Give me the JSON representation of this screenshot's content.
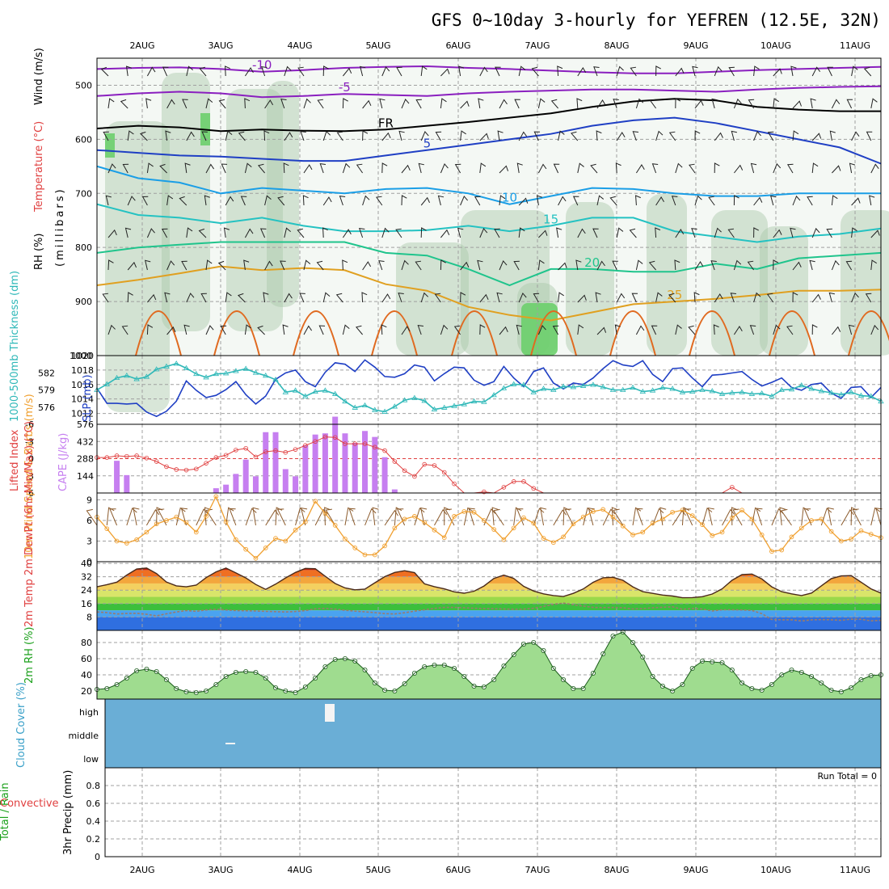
{
  "title": "GFS 0~10day 3-hourly for YEFREN (12.5E, 32N)",
  "dates": [
    "2AUG",
    "3AUG",
    "4AUG",
    "5AUG",
    "6AUG",
    "7AUG",
    "8AUG",
    "9AUG",
    "10AUG",
    "11AUG"
  ],
  "colors": {
    "rh_fill": "#dceedd",
    "rh_mid": "#a8c8a8",
    "rh_dark": "#b4b4b4",
    "rh_green": "#6ccf6c",
    "slp": "#1f3fc4",
    "thickness": "#2fb8b8",
    "cape": "#c67ff0",
    "lifted": "#e04040",
    "wind_speed": "#f0a030",
    "barb": "#8b5a2b",
    "cloud_bg": "#6aaed6",
    "dewpoint": "#9b7b6b"
  },
  "chart_data": [
    {
      "id": "upper",
      "type": "contour",
      "ylabel_parts": [
        "RH (%)",
        "Temperature (°C)",
        "Wind (m/s)"
      ],
      "yaxis_title": "(millibars)",
      "ylim": [
        1000,
        450
      ],
      "yticks": [
        500,
        600,
        700,
        800,
        900,
        1000
      ],
      "isotherms": [
        {
          "label": "-10",
          "color": "#8a1fbf",
          "values": [
            470,
            468,
            467,
            470,
            475,
            472,
            468,
            466,
            465,
            468,
            470,
            473,
            476,
            478,
            478,
            475,
            472,
            470,
            468,
            466
          ]
        },
        {
          "label": "-5",
          "color": "#8a1fbf",
          "values": [
            520,
            515,
            512,
            515,
            522,
            520,
            516,
            518,
            520,
            515,
            512,
            510,
            508,
            508,
            510,
            512,
            508,
            505,
            503,
            502
          ]
        },
        {
          "label": "FR",
          "color": "#000000",
          "values": [
            580,
            575,
            578,
            585,
            582,
            584,
            585,
            582,
            575,
            568,
            560,
            552,
            540,
            530,
            525,
            528,
            540,
            545,
            548,
            548
          ]
        },
        {
          "label": "5",
          "color": "#1f3fc4",
          "values": [
            620,
            625,
            630,
            632,
            636,
            640,
            640,
            630,
            620,
            610,
            600,
            590,
            575,
            565,
            560,
            570,
            585,
            600,
            615,
            645
          ]
        },
        {
          "label": "10",
          "color": "#1a9ee6",
          "values": [
            650,
            672,
            680,
            700,
            690,
            695,
            700,
            692,
            690,
            700,
            720,
            705,
            690,
            692,
            700,
            705,
            705,
            700,
            700,
            700
          ]
        },
        {
          "label": "15",
          "color": "#24c2c2",
          "values": [
            720,
            740,
            745,
            755,
            745,
            760,
            770,
            770,
            768,
            760,
            770,
            760,
            745,
            745,
            770,
            780,
            790,
            780,
            775,
            765
          ]
        },
        {
          "label": "20",
          "color": "#1fc48c",
          "values": [
            810,
            800,
            795,
            790,
            790,
            790,
            790,
            810,
            815,
            840,
            870,
            840,
            840,
            845,
            845,
            830,
            840,
            820,
            815,
            810
          ]
        },
        {
          "label": "25",
          "color": "#e0a020",
          "values": [
            870,
            860,
            848,
            835,
            842,
            838,
            842,
            868,
            880,
            910,
            925,
            935,
            920,
            905,
            900,
            895,
            888,
            880,
            880,
            878
          ]
        }
      ]
    },
    {
      "id": "slp-thickness",
      "type": "line",
      "ylabel_left": "1000-500mb Thickness (dm)",
      "ylabel_right": "SLP (mb)",
      "left_ylim": [
        573,
        585
      ],
      "left_ticks": [
        576,
        579,
        582
      ],
      "right_ylim": [
        1010.5,
        1020
      ],
      "right_ticks": [
        1012,
        1014,
        1016,
        1018,
        1020
      ],
      "series": [
        {
          "name": "SLP",
          "axis": "right",
          "values": [
            1015.5,
            1013.4,
            1013.4,
            1013.3,
            1013.4,
            1012.2,
            1011.6,
            1012.3,
            1013.7,
            1016.5,
            1015.2,
            1014.2,
            1014.5,
            1015.3,
            1016.4,
            1014.6,
            1013.3,
            1014.4,
            1016.7,
            1017.6,
            1018.0,
            1016.4,
            1015.7,
            1017.7,
            1019.0,
            1018.8,
            1017.8,
            1019.4,
            1018.4,
            1017.1,
            1017.0,
            1017.5,
            1018.7,
            1018.4,
            1016.5,
            1017.5,
            1018.4,
            1018.3,
            1016.6,
            1015.9,
            1016.4,
            1018.5,
            1016.9,
            1015.7,
            1017.8,
            1018.3,
            1016.2,
            1015.4,
            1016.2,
            1016.0,
            1016.9,
            1018.2,
            1019.3,
            1018.7,
            1018.5,
            1019.3,
            1017.4,
            1016.4,
            1018.2,
            1018.3,
            1016.9,
            1015.7,
            1017.3,
            1017.4,
            1017.6,
            1017.8,
            1016.7,
            1015.8,
            1016.3,
            1016.9,
            1015.6,
            1015.2,
            1016.0,
            1016.2,
            1014.8,
            1014.1,
            1015.6,
            1015.7,
            1014.2,
            1015.6
          ]
        },
        {
          "name": "Thickness",
          "axis": "left",
          "values": [
            579.0,
            580.0,
            581.1,
            581.5,
            580.9,
            581.3,
            582.6,
            583.1,
            583.6,
            582.8,
            581.8,
            581.2,
            581.8,
            581.9,
            582.3,
            582.7,
            582.0,
            581.5,
            580.8,
            578.6,
            578.9,
            577.9,
            578.7,
            578.9,
            578.3,
            577.0,
            575.9,
            576.3,
            575.5,
            575.2,
            576.1,
            577.2,
            577.6,
            577.1,
            575.6,
            575.9,
            576.2,
            576.5,
            577.0,
            576.9,
            578.1,
            579.3,
            580.0,
            579.9,
            578.6,
            579.2,
            579.0,
            579.6,
            579.5,
            579.7,
            579.9,
            579.5,
            579.0,
            579.0,
            579.4,
            578.7,
            578.9,
            579.4,
            579.2,
            578.6,
            578.7,
            579.0,
            578.8,
            578.3,
            578.5,
            578.6,
            578.3,
            578.4,
            577.9,
            579.0,
            579.1,
            579.8,
            579.2,
            578.8,
            578.5,
            578.2,
            578.6,
            578.0,
            577.9,
            577.0
          ]
        }
      ]
    },
    {
      "id": "cape-li",
      "type": "bar",
      "ylabel_left": "Lifted Index",
      "ylabel_right": "CAPE (J/kg)",
      "left_ylim": [
        -6,
        6
      ],
      "left_ticks": [
        -6,
        -3,
        0,
        3,
        6
      ],
      "right_ylim": [
        0,
        576
      ],
      "right_ticks": [
        144,
        288,
        432,
        576
      ],
      "cape_values": [
        0,
        0,
        270,
        150,
        0,
        0,
        0,
        0,
        0,
        0,
        0,
        0,
        40,
        70,
        160,
        280,
        140,
        510,
        510,
        200,
        140,
        400,
        490,
        500,
        640,
        500,
        420,
        520,
        470,
        300,
        30,
        0,
        0,
        0,
        0,
        0,
        0,
        0,
        0,
        0,
        0,
        0,
        0,
        0,
        0,
        0,
        0,
        0,
        0,
        0,
        0,
        0,
        0,
        0,
        0,
        0,
        0,
        0,
        0,
        0,
        0,
        0,
        0,
        0,
        0,
        0,
        0,
        0,
        0,
        0,
        0,
        0,
        0,
        0,
        0,
        0,
        0,
        0,
        0,
        0
      ],
      "lifted_values": [
        -0.2,
        -0.2,
        -0.5,
        -0.4,
        -0.5,
        -0.1,
        0.5,
        1.4,
        1.9,
        2.0,
        1.8,
        0.8,
        -0.2,
        -0.6,
        -1.5,
        -1.8,
        -0.3,
        -1.2,
        -1.4,
        -1.1,
        -1.6,
        -2.3,
        -3.0,
        -3.8,
        -3.7,
        -2.6,
        -2.6,
        -2.6,
        -2.0,
        -1.4,
        0.5,
        2.1,
        3.1,
        1.0,
        1.2,
        2.4,
        4.4,
        6.0,
        6.0,
        5.8,
        6.0,
        5.0,
        4.0,
        4.0,
        5.2,
        6.0,
        6.0,
        6.0,
        6.0,
        6.0,
        6.0,
        6.0,
        6.0,
        6.0,
        6.0,
        6.0,
        6.0,
        6.0,
        6.0,
        6.0,
        6.0,
        6.0,
        6.0,
        6.0,
        5.0,
        6.0,
        6.0,
        6.0,
        6.0,
        6.0,
        6.0,
        6.0,
        6.0,
        6.0,
        6.0,
        6.0,
        6.0,
        6.0,
        6.0,
        6.0
      ]
    },
    {
      "id": "wind10m",
      "type": "line",
      "ylabel": "10m Wind Speed & Barbs (m/s)",
      "ylim": [
        0,
        10
      ],
      "yticks": [
        0,
        3,
        6,
        9
      ],
      "values": [
        6.5,
        4.8,
        3.0,
        2.7,
        3.2,
        4.3,
        5.5,
        6.0,
        6.5,
        5.7,
        4.3,
        6.6,
        9.5,
        5.8,
        3.2,
        1.8,
        0.5,
        2.0,
        3.4,
        3.0,
        4.6,
        5.8,
        8.8,
        7.0,
        5.3,
        3.3,
        2.0,
        1.0,
        1.0,
        2.3,
        4.9,
        6.2,
        6.6,
        5.7,
        4.6,
        3.5,
        6.6,
        7.3,
        7.2,
        6.0,
        4.7,
        3.2,
        4.9,
        6.4,
        5.6,
        3.4,
        2.8,
        3.6,
        5.5,
        6.5,
        7.3,
        7.6,
        6.5,
        5.2,
        3.9,
        4.3,
        5.6,
        6.2,
        7.2,
        7.5,
        6.7,
        5.4,
        3.8,
        4.3,
        6.4,
        7.5,
        6.2,
        3.9,
        1.5,
        1.7,
        3.6,
        4.9,
        6.0,
        6.2,
        4.4,
        3.0,
        3.3,
        4.5,
        4.0,
        3.5
      ]
    },
    {
      "id": "temp2m",
      "type": "area",
      "ylabel": "2m Temp 2m DewPt (6hr Min/Max) (°C)",
      "ylim": [
        0,
        41
      ],
      "yticks": [
        8,
        16,
        24,
        32,
        40
      ],
      "temperature": [
        26.0,
        27.3,
        28.8,
        33.0,
        36.6,
        37.2,
        33.9,
        28.9,
        26.6,
        26.0,
        27.0,
        31.5,
        34.9,
        37.2,
        34.3,
        31.3,
        27.4,
        24.5,
        27.6,
        31.3,
        34.6,
        37.0,
        36.8,
        32.3,
        28.0,
        25.3,
        24.2,
        24.6,
        28.4,
        32.1,
        34.6,
        35.6,
        34.5,
        27.8,
        26.1,
        24.8,
        23.0,
        22.2,
        23.4,
        26.5,
        31.0,
        33.0,
        31.0,
        26.3,
        23.5,
        21.8,
        20.8,
        20.2,
        22.1,
        24.7,
        28.7,
        31.4,
        31.7,
        29.9,
        26.0,
        23.1,
        22.1,
        21.1,
        20.5,
        19.5,
        19.6,
        20.1,
        21.7,
        24.8,
        29.9,
        33.3,
        33.6,
        30.7,
        26.0,
        23.1,
        21.8,
        20.8,
        22.3,
        26.6,
        30.9,
        32.5,
        32.7,
        28.8,
        24.8,
        22.3
      ],
      "dewpoint": [
        11.0,
        10.6,
        9.8,
        10.1,
        10.2,
        9.6,
        8.7,
        9.9,
        11.0,
        11.8,
        11.4,
        12.2,
        12.6,
        12.2,
        11.8,
        11.7,
        11.6,
        11.4,
        11.2,
        11.0,
        11.3,
        11.8,
        12.9,
        13.1,
        12.7,
        12.0,
        11.5,
        11.1,
        10.6,
        10.0,
        9.8,
        10.5,
        11.5,
        12.3,
        13.1,
        13.7,
        13.7,
        13.5,
        13.2,
        13.0,
        12.9,
        12.8,
        12.6,
        12.7,
        13.2,
        14.3,
        15.5,
        16.3,
        15.3,
        14.5,
        13.7,
        13.6,
        13.7,
        13.5,
        12.8,
        13.0,
        13.5,
        13.8,
        14.1,
        12.6,
        13.0,
        12.8,
        11.6,
        12.3,
        12.3,
        12.2,
        11.9,
        10.0,
        6.5,
        6.3,
        6.3,
        5.6,
        6.3,
        6.4,
        6.3,
        6.0,
        6.7,
        6.6,
        5.7,
        6.0
      ]
    },
    {
      "id": "rh2m",
      "type": "area",
      "ylabel": "2m RH (%)",
      "ylim": [
        10,
        95
      ],
      "yticks": [
        20,
        40,
        60,
        80
      ],
      "values": [
        22,
        23,
        28,
        36,
        45,
        47,
        44,
        34,
        23,
        19,
        18,
        20,
        28,
        38,
        43,
        44,
        43,
        36,
        24,
        20,
        18,
        25,
        36,
        50,
        59,
        60,
        57,
        46,
        30,
        21,
        20,
        29,
        42,
        50,
        52,
        52,
        48,
        38,
        26,
        25,
        34,
        51,
        65,
        78,
        80,
        70,
        48,
        34,
        23,
        23,
        42,
        66,
        88,
        93,
        80,
        62,
        38,
        26,
        20,
        28,
        48,
        57,
        56,
        55,
        46,
        30,
        23,
        21,
        28,
        40,
        46,
        43,
        38,
        30,
        21,
        19,
        24,
        34,
        39,
        40
      ]
    },
    {
      "id": "cloud",
      "type": "heatmap",
      "ylabel": "Cloud Cover (%)",
      "levels": [
        "high",
        "middle",
        "low"
      ]
    },
    {
      "id": "precip",
      "type": "bar",
      "ylabel_parts": [
        "Total / Rain",
        "Convective",
        "3hr Precip (mm)"
      ],
      "ylim": [
        0,
        1
      ],
      "yticks": [
        0,
        0.2,
        0.4,
        0.6,
        0.8
      ],
      "run_total": "Run Total = 0",
      "values": []
    }
  ]
}
